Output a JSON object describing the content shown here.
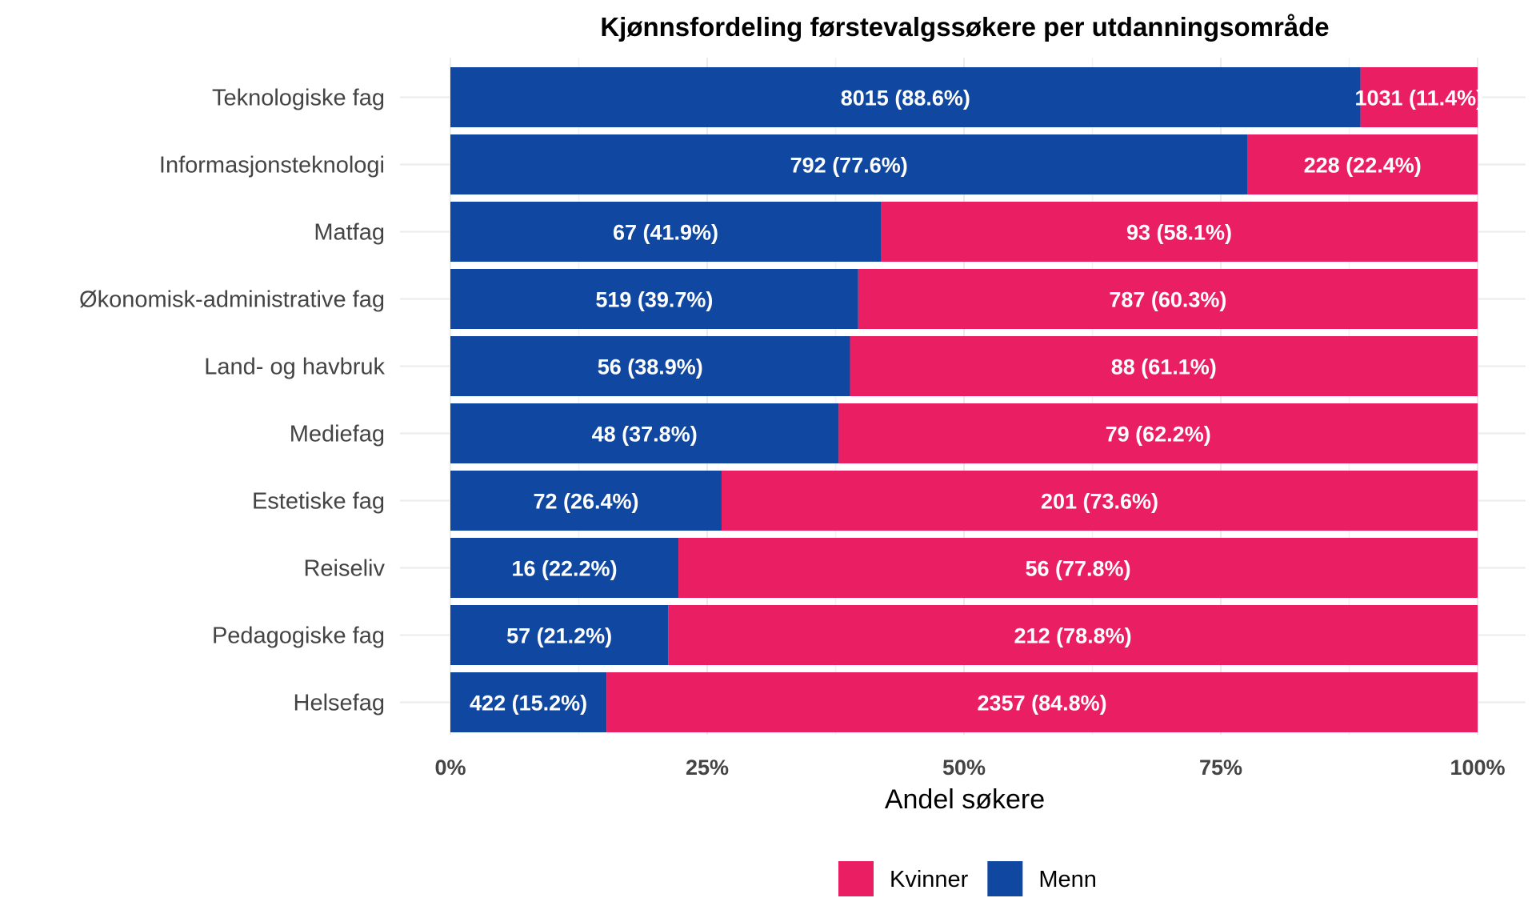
{
  "chart_data": {
    "type": "bar",
    "orientation": "horizontal",
    "stacked": "percent",
    "title": "Kjønnsfordeling førstevalgssøkere per utdanningsområde",
    "xlabel": "Andel søkere",
    "ylabel": "",
    "xlim": [
      0,
      100
    ],
    "x_ticks": [
      "0%",
      "25%",
      "50%",
      "75%",
      "100%"
    ],
    "grid": true,
    "legend_position": "bottom",
    "categories": [
      "Teknologiske fag",
      "Informasjonsteknologi",
      "Matfag",
      "Økonomisk-administrative fag",
      "Land- og havbruk",
      "Mediefag",
      "Estetiske fag",
      "Reiseliv",
      "Pedagogiske fag",
      "Helsefag"
    ],
    "series": [
      {
        "name": "Menn",
        "color": "#0f47a1",
        "counts": [
          8015,
          792,
          67,
          519,
          56,
          48,
          72,
          16,
          57,
          422
        ],
        "percents": [
          88.6,
          77.6,
          41.9,
          39.7,
          38.9,
          37.8,
          26.4,
          22.2,
          21.2,
          15.2
        ],
        "labels": [
          "8015 (88.6%)",
          "792 (77.6%)",
          "67 (41.9%)",
          "519 (39.7%)",
          "56 (38.9%)",
          "48 (37.8%)",
          "72 (26.4%)",
          "16 (22.2%)",
          "57 (21.2%)",
          "422 (15.2%)"
        ]
      },
      {
        "name": "Kvinner",
        "color": "#e91e63",
        "counts": [
          1031,
          228,
          93,
          787,
          88,
          79,
          201,
          56,
          212,
          2357
        ],
        "percents": [
          11.4,
          22.4,
          58.1,
          60.3,
          61.1,
          62.2,
          73.6,
          77.8,
          78.8,
          84.8
        ],
        "labels": [
          "1031 (11.4%)",
          "228 (22.4%)",
          "93 (58.1%)",
          "787 (60.3%)",
          "88 (61.1%)",
          "79 (62.2%)",
          "201 (73.6%)",
          "56 (77.8%)",
          "212 (78.8%)",
          "2357 (84.8%)"
        ]
      }
    ],
    "legend": [
      {
        "label": "Kvinner",
        "color": "#e91e63"
      },
      {
        "label": "Menn",
        "color": "#0f47a1"
      }
    ]
  }
}
